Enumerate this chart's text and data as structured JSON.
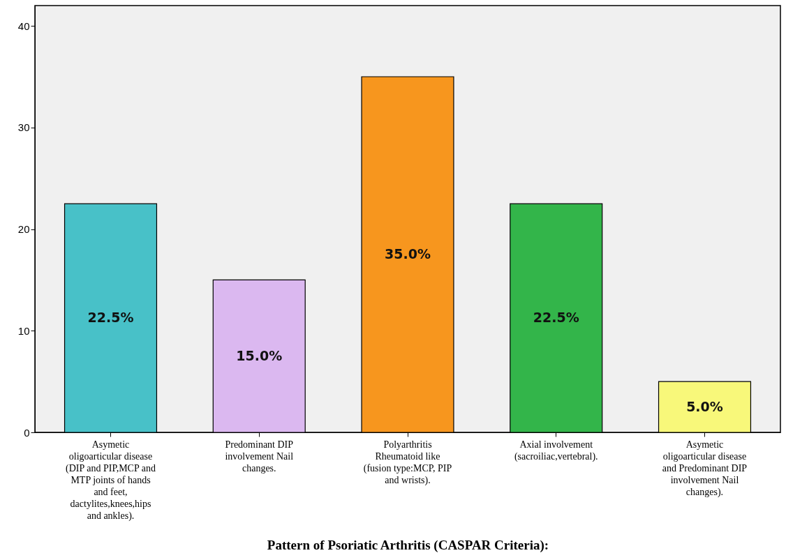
{
  "chart_data": {
    "type": "bar",
    "xlabel": "Pattern of Psoriatic Arthritis (CASPAR Criteria):",
    "categories": [
      "Asymetic oligoarticular disease (DIP and PIP,MCP and MTP joints of hands and   feet, dactylites,knees,hips and ankles).",
      "Predominant DIP involvement Nail changes.",
      "Polyarthritis Rheumatoid like (fusion type:MCP, PIP and wrists).",
      "Axial involvement (sacroiliac,vertebral).",
      "Asymetic oligoarticular disease and Predominant DIP involvement Nail changes)."
    ],
    "values": [
      22.5,
      15,
      35,
      22.5,
      5
    ],
    "colors": [
      "#48c1c8",
      "#dbb8f0",
      "#f7961e",
      "#33b54a",
      "#f8f87a"
    ],
    "value_labels": [
      "22.5%",
      "15.0%",
      "35.0%",
      "22.5%",
      "5.0%"
    ],
    "ylim": [
      0,
      42
    ],
    "yticks": [
      0,
      10,
      20,
      30,
      40
    ]
  }
}
